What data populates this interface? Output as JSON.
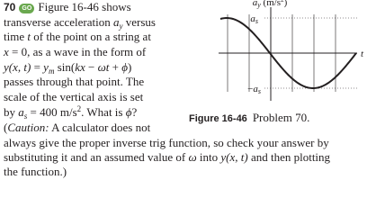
{
  "problem": {
    "number": "70",
    "badge": "GO",
    "lines": [
      [
        "Figure 16-46 shows"
      ],
      [
        "transverse acceleration ",
        "a",
        "y",
        " versus"
      ],
      [
        "time ",
        "t",
        " of the point on a string at"
      ],
      [
        "x",
        " = 0, as a wave in the form of"
      ],
      [
        "y(x, t)",
        " = ",
        "y",
        "m",
        " sin(",
        "kx",
        " − ",
        "ωt",
        " + ",
        "ϕ",
        ")"
      ],
      [
        "passes through that point. The"
      ],
      [
        "scale of the vertical axis is set"
      ],
      [
        "by ",
        "a",
        "s",
        " = 400 m/s",
        "2",
        ". What is ",
        "ϕ",
        "?"
      ],
      [
        "(",
        "Caution:",
        " A calculator does not"
      ],
      [
        "always give the proper inverse trig function, so check your answer by"
      ],
      [
        "substituting it and an assumed value of ",
        "ω",
        " into ",
        "y(x, t)",
        " and then plotting"
      ],
      [
        "the function.)"
      ]
    ]
  },
  "figure": {
    "axis_label": [
      "a",
      "y",
      " (m/s",
      "2",
      ")"
    ],
    "top_tick": [
      "a",
      "s"
    ],
    "bottom_tick": [
      "−",
      "a",
      "s"
    ],
    "x_label": "t",
    "caption_label": "Figure 16-46",
    "caption_text": "Problem 70."
  }
}
